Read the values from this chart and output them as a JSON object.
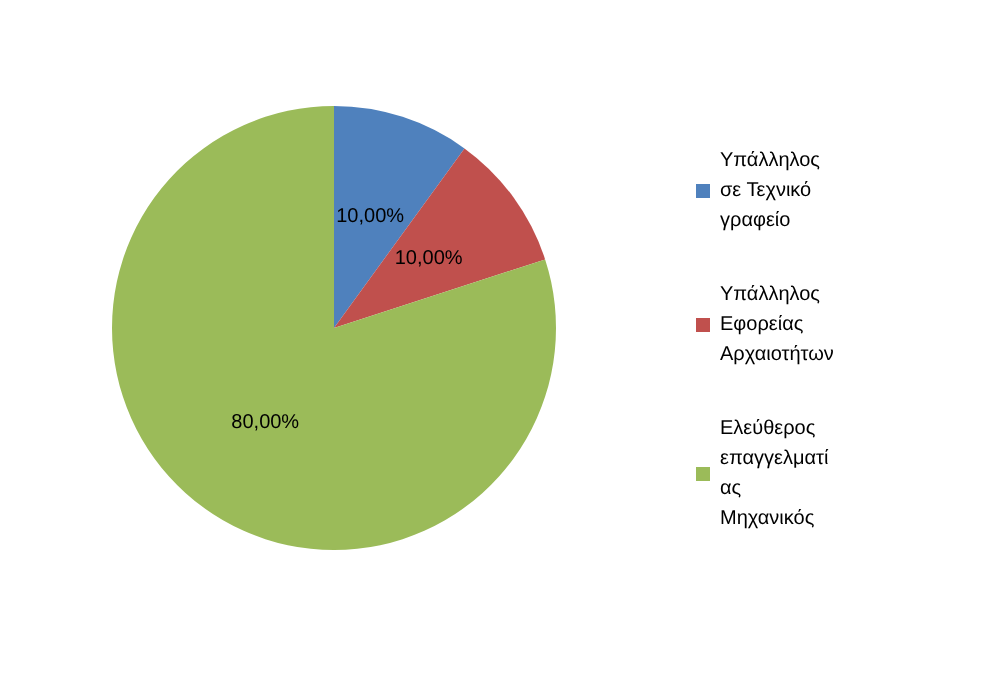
{
  "chart_data": {
    "type": "pie",
    "categories": [
      "Υπάλληλος σε Τεχνικό γραφείο",
      "Υπάλληλος Εφορείας Αρχαιοτήτων",
      "Ελεύθερος επαγγελματίας Μηχανικός"
    ],
    "values": [
      10,
      10,
      80
    ],
    "colors": [
      "#4f81bd",
      "#c0504d",
      "#9bbb59"
    ],
    "value_labels": [
      "10,00%",
      "10,00%",
      "80,00%"
    ],
    "legend": "right"
  }
}
